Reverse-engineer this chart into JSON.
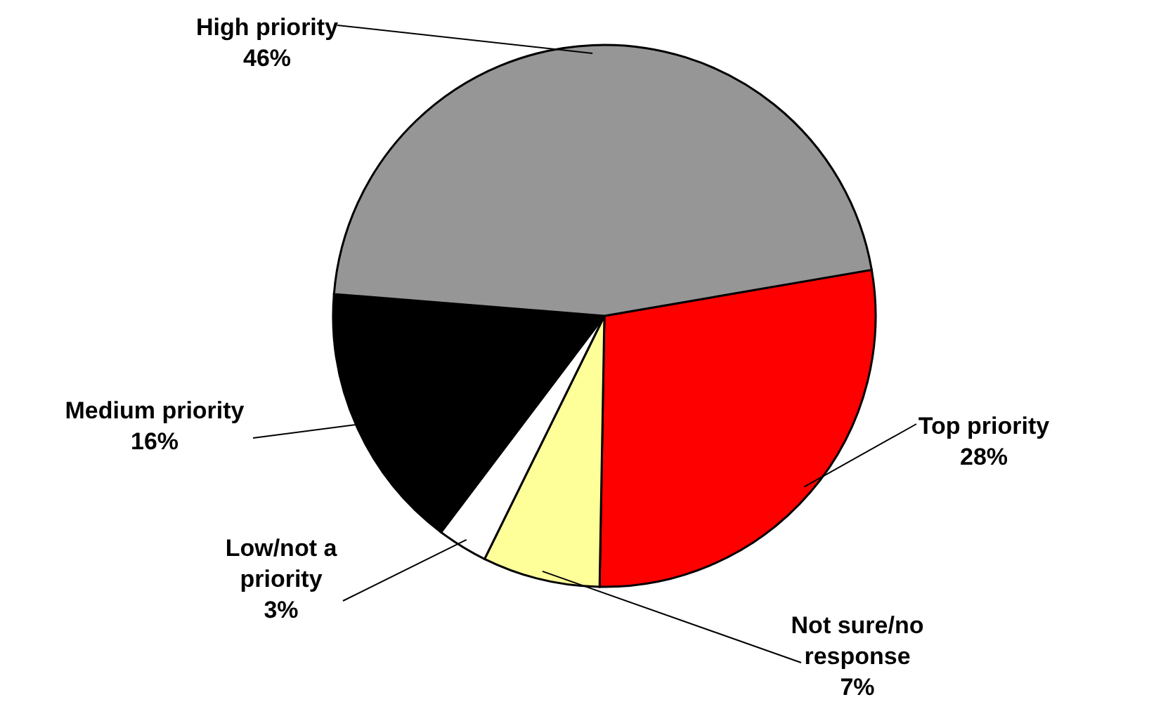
{
  "chart_data": {
    "type": "pie",
    "categories": [
      "Top priority",
      "Not sure/no response",
      "Low/not a priority",
      "Medium priority",
      "High priority"
    ],
    "values": [
      28,
      7,
      3,
      16,
      46
    ],
    "value_labels": [
      "28%",
      "7%",
      "3%",
      "16%",
      "46%"
    ],
    "colors": [
      "#ff0000",
      "#ffff99",
      "#ffffff",
      "#000000",
      "#969696"
    ]
  }
}
